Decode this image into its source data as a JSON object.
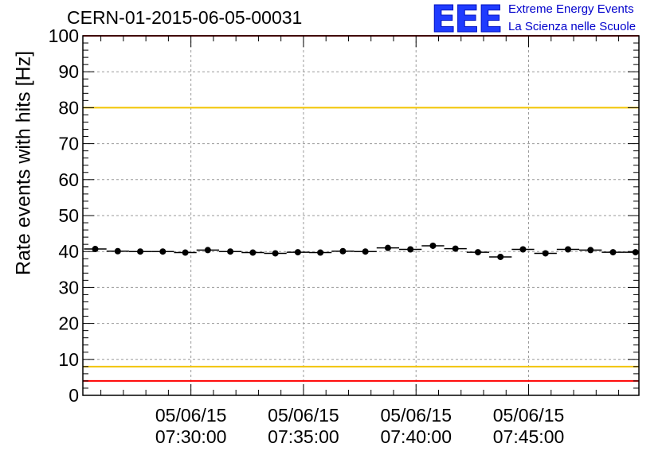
{
  "title": "CERN-01-2015-06-05-00031",
  "logo": {
    "mark": "EEE",
    "line1": "Extreme Energy Events",
    "line2": "La Scienza nelle Scuole"
  },
  "chart_data": {
    "type": "scatter",
    "title": "CERN-01-2015-06-05-00031",
    "xlabel": "",
    "ylabel": "Rate events with hits [Hz]",
    "ylim": [
      0,
      100
    ],
    "xlim_minutes": [
      25.2,
      49.9
    ],
    "x_tick_labels": [
      {
        "minute": 30,
        "date": "05/06/15",
        "time": "07:30:00"
      },
      {
        "minute": 35,
        "date": "05/06/15",
        "time": "07:35:00"
      },
      {
        "minute": 40,
        "date": "05/06/15",
        "time": "07:40:00"
      },
      {
        "minute": 45,
        "date": "05/06/15",
        "time": "07:45:00"
      }
    ],
    "y_ticks": [
      0,
      10,
      20,
      30,
      40,
      50,
      60,
      70,
      80,
      90,
      100
    ],
    "grid": true,
    "reference_lines": [
      {
        "y": 4,
        "color": "#ff0000"
      },
      {
        "y": 8,
        "color": "#f2c400"
      },
      {
        "y": 80,
        "color": "#f2c400"
      },
      {
        "y": 100,
        "color": "#ff0000"
      }
    ],
    "series": [
      {
        "color": "#000000",
        "x": [
          "07:25:45",
          "07:26:45",
          "07:27:45",
          "07:28:45",
          "07:29:45",
          "07:30:45",
          "07:31:45",
          "07:32:45",
          "07:33:45",
          "07:34:45",
          "07:35:45",
          "07:36:45",
          "07:37:45",
          "07:38:45",
          "07:39:45",
          "07:40:45",
          "07:41:45",
          "07:42:45",
          "07:43:45",
          "07:44:45",
          "07:45:45",
          "07:46:45",
          "07:47:45",
          "07:48:45",
          "07:49:45"
        ],
        "bin_halfwidth_seconds": 30,
        "values": [
          40.7,
          40.1,
          40.0,
          40.0,
          39.7,
          40.4,
          40.0,
          39.7,
          39.5,
          39.8,
          39.7,
          40.1,
          40.0,
          41.0,
          40.6,
          41.6,
          40.8,
          39.8,
          38.5,
          40.6,
          39.5,
          40.6,
          40.4,
          39.8,
          39.8
        ]
      }
    ]
  }
}
